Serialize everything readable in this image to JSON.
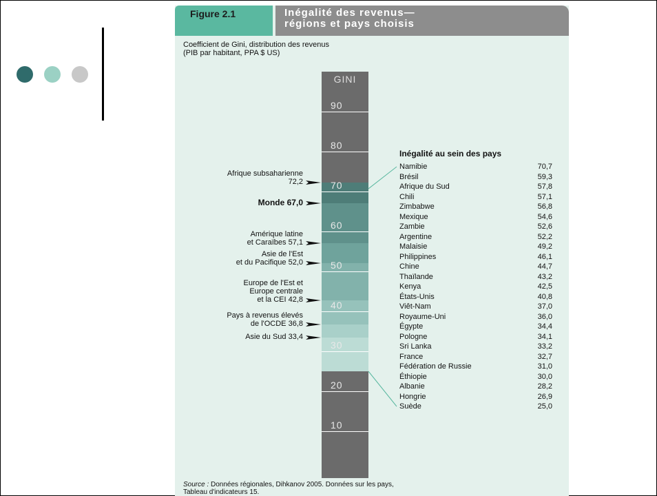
{
  "slide": {
    "dots": [
      {
        "name": "dot-dark",
        "color": "#2f6b6b"
      },
      {
        "name": "dot-mid",
        "color": "#9bd1c4"
      },
      {
        "name": "dot-light",
        "color": "#c8c8c8"
      }
    ]
  },
  "figure": {
    "label": "Figure 2.1",
    "title_line1": "Inégalité des revenus—",
    "title_line2": "régions et pays choisis",
    "subtitle_line1": "Coefficient de Gini, distribution des revenus",
    "subtitle_line2": "(PIB par habitant, PPA $ US)",
    "source_prefix": "Source :",
    "source_line1": " Données régionales, Dihkanov 2005. Données sur les pays,",
    "source_line2": "Tableau d'indicateurs 15.",
    "colors": {
      "label_bg": "#5ab8a0",
      "title_bg": "#8d8d8d",
      "panel_bg": "#e4f1ec",
      "bar_gray": "#6b6b6b"
    }
  },
  "chart_data": {
    "type": "bar",
    "axis_label": "GINI",
    "ylim": [
      0,
      100
    ],
    "ticks": [
      "90",
      "80",
      "70",
      "60",
      "50",
      "40",
      "30",
      "20",
      "10"
    ],
    "regions": [
      {
        "line1": "Afrique subsaharienne",
        "line2": "72,2",
        "value": 72.2,
        "bold": false
      },
      {
        "line1": "Monde 67,0",
        "line2": "",
        "value": 67.0,
        "bold": true
      },
      {
        "line1": "Amérique latine",
        "line2": "et Caraïbes  57,1",
        "value": 57.1,
        "bold": false
      },
      {
        "line1": "Asie de l'Est",
        "line2": "et du Pacifique  52,0",
        "value": 52.0,
        "bold": false
      },
      {
        "line1": "Europe de l'Est et",
        "line2": "Europe centrale",
        "line3": "et la CEI  42,8",
        "value": 42.8,
        "bold": false
      },
      {
        "line1": "Pays à revenus élevés",
        "line2": "de l'OCDE  36,8",
        "value": 36.8,
        "bold": false
      },
      {
        "line1": "Asie du Sud  33,4",
        "line2": "",
        "value": 33.4,
        "bold": false
      }
    ],
    "country_range": [
      25.0,
      70.7
    ],
    "countries_title": "Inégalité au sein des pays",
    "countries": [
      {
        "name": "Namibie",
        "value": "70,7"
      },
      {
        "name": "Brésil",
        "value": "59,3"
      },
      {
        "name": "Afrique du Sud",
        "value": "57,8"
      },
      {
        "name": "Chili",
        "value": "57,1"
      },
      {
        "name": "Zimbabwe",
        "value": "56,8"
      },
      {
        "name": "Mexique",
        "value": "54,6"
      },
      {
        "name": "Zambie",
        "value": "52,6"
      },
      {
        "name": "Argentine",
        "value": "52,2"
      },
      {
        "name": "Malaisie",
        "value": "49,2"
      },
      {
        "name": "Philippines",
        "value": "46,1"
      },
      {
        "name": "Chine",
        "value": "44,7"
      },
      {
        "name": "Thaïlande",
        "value": "43,2"
      },
      {
        "name": "Kenya",
        "value": "42,5"
      },
      {
        "name": "États-Unis",
        "value": "40,8"
      },
      {
        "name": "Viêt-Nam",
        "value": "37,0"
      },
      {
        "name": "Royaume-Uni",
        "value": "36,0"
      },
      {
        "name": "Égypte",
        "value": "34,4"
      },
      {
        "name": "Pologne",
        "value": "34,1"
      },
      {
        "name": "Sri Lanka",
        "value": "33,2"
      },
      {
        "name": "France",
        "value": "32,7"
      },
      {
        "name": "Fédération de Russie",
        "value": "31,0"
      },
      {
        "name": "Éthiopie",
        "value": "30,0"
      },
      {
        "name": "Albanie",
        "value": "28,2"
      },
      {
        "name": "Hongrie",
        "value": "26,9"
      },
      {
        "name": "Suède",
        "value": "25,0"
      }
    ]
  }
}
